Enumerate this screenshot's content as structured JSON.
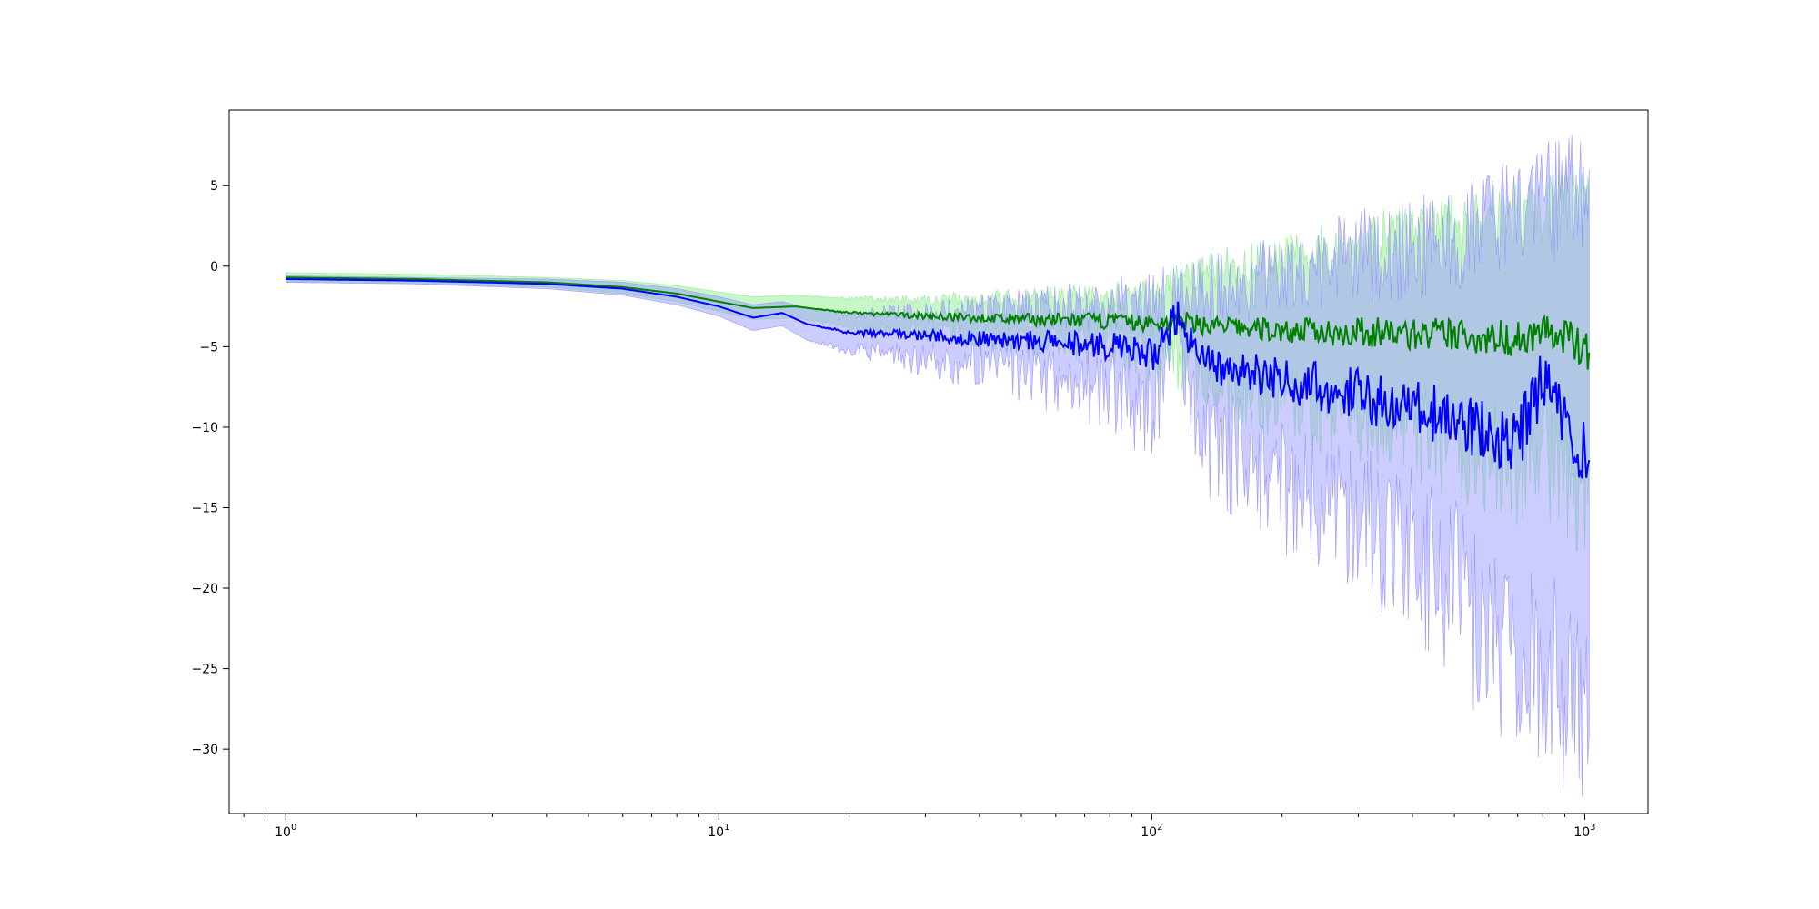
{
  "chart_data": {
    "type": "line",
    "title": "",
    "xlabel": "",
    "ylabel": "",
    "xscale": "log",
    "xlim": [
      0.74,
      1400
    ],
    "ylim": [
      -34,
      9.7
    ],
    "x_ticks": [
      {
        "base": "10",
        "exp": "0",
        "value": 1
      },
      {
        "base": "10",
        "exp": "1",
        "value": 10
      },
      {
        "base": "10",
        "exp": "2",
        "value": 100
      },
      {
        "base": "10",
        "exp": "3",
        "value": 1000
      }
    ],
    "y_ticks": [
      5,
      0,
      -5,
      -10,
      -15,
      -20,
      -25,
      -30
    ],
    "grid": false,
    "legend": "none",
    "series": [
      {
        "color": "#008000",
        "band_color": "#90ee90",
        "x": [
          1,
          2,
          4,
          6,
          8,
          10,
          12,
          15,
          20,
          30,
          50,
          80,
          100,
          115,
          150,
          200,
          300,
          500,
          700,
          800,
          1000,
          1024
        ],
        "mean": [
          -0.7,
          -0.8,
          -1.0,
          -1.3,
          -1.7,
          -2.2,
          -2.6,
          -2.5,
          -2.9,
          -3.1,
          -3.3,
          -3.4,
          -3.6,
          -3.4,
          -3.8,
          -4.0,
          -4.1,
          -4.3,
          -4.5,
          -4.0,
          -5.0,
          -5.5
        ],
        "upper": [
          -0.4,
          -0.5,
          -0.7,
          -0.9,
          -1.2,
          -1.6,
          -1.9,
          -1.8,
          -2.0,
          -2.1,
          -2.0,
          -1.9,
          -1.8,
          -1.0,
          0.0,
          0.5,
          1.5,
          2.5,
          3.5,
          3.5,
          4.5,
          4.0
        ],
        "lower": [
          -1.0,
          -1.1,
          -1.3,
          -1.7,
          -2.2,
          -2.8,
          -3.3,
          -3.2,
          -3.8,
          -4.1,
          -4.6,
          -4.9,
          -5.4,
          -5.8,
          -7.6,
          -8.5,
          -9.7,
          -11.1,
          -12.5,
          -11.5,
          -14.5,
          -15.0
        ]
      },
      {
        "color": "#0000ff",
        "band_color": "#9999ff",
        "x": [
          1,
          2,
          4,
          6,
          8,
          10,
          12,
          14,
          16,
          20,
          30,
          50,
          80,
          100,
          115,
          130,
          200,
          300,
          500,
          700,
          800,
          1000,
          1024
        ],
        "mean": [
          -0.8,
          -0.9,
          -1.1,
          -1.4,
          -1.9,
          -2.5,
          -3.2,
          -2.9,
          -3.6,
          -4.1,
          -4.3,
          -4.6,
          -5.0,
          -5.6,
          -3.0,
          -6.0,
          -7.0,
          -8.0,
          -9.5,
          -11.0,
          -7.0,
          -12.0,
          -13.0
        ],
        "upper": [
          -0.6,
          -0.7,
          -0.8,
          -1.0,
          -1.4,
          -1.9,
          -2.4,
          -2.2,
          -2.6,
          -3.0,
          -2.8,
          -2.6,
          -2.4,
          -2.2,
          -1.8,
          -1.5,
          -0.5,
          0.5,
          1.5,
          3.0,
          4.0,
          4.0,
          3.0
        ],
        "lower": [
          -1.0,
          -1.1,
          -1.4,
          -1.8,
          -2.4,
          -3.1,
          -4.0,
          -3.7,
          -4.6,
          -5.2,
          -5.8,
          -6.6,
          -7.6,
          -9.0,
          -4.2,
          -10.5,
          -13.5,
          -15.5,
          -20.0,
          -26.0,
          -25.0,
          -28.0,
          -29.0
        ]
      }
    ]
  }
}
